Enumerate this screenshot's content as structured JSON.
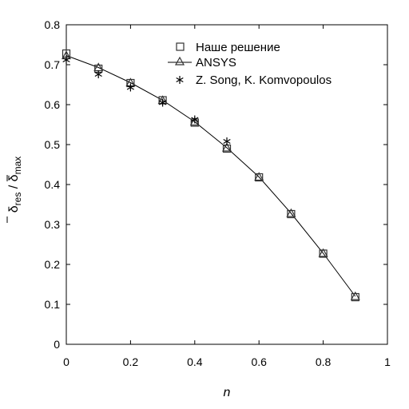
{
  "chart_data": {
    "type": "line",
    "xlabel": "n",
    "ylabel": {
      "numerator": "δ",
      "numerator_sub": "res",
      "separator": " / ",
      "denominator": "δ",
      "denominator_sub": "max"
    },
    "xlim": [
      0,
      1
    ],
    "ylim": [
      0,
      0.8
    ],
    "x_ticks": [
      "0",
      "0.2",
      "0.4",
      "0.6",
      "0.8",
      "1"
    ],
    "x_tick_values": [
      0,
      0.2,
      0.4,
      0.6,
      0.8,
      1.0
    ],
    "y_ticks": [
      "0",
      "0.1",
      "0.2",
      "0.3",
      "0.4",
      "0.5",
      "0.6",
      "0.7",
      "0.8"
    ],
    "y_tick_values": [
      0,
      0.1,
      0.2,
      0.3,
      0.4,
      0.5,
      0.6,
      0.7,
      0.8
    ],
    "grid": false,
    "legend_position": "top-right",
    "series": [
      {
        "name": "Наше решение",
        "marker": "square",
        "line": false,
        "x": [
          0,
          0.1,
          0.2,
          0.3,
          0.4,
          0.5,
          0.6,
          0.7,
          0.8,
          0.9
        ],
        "y": [
          0.728,
          0.69,
          0.654,
          0.611,
          0.555,
          0.49,
          0.418,
          0.326,
          0.227,
          0.118
        ]
      },
      {
        "name": "ANSYS",
        "marker": "triangle",
        "line": true,
        "x": [
          0,
          0.1,
          0.2,
          0.3,
          0.4,
          0.5,
          0.6,
          0.7,
          0.8,
          0.9
        ],
        "y": [
          0.723,
          0.693,
          0.655,
          0.611,
          0.557,
          0.492,
          0.419,
          0.328,
          0.228,
          0.12
        ]
      },
      {
        "name": "Z. Song, K. Komvopoulos",
        "marker": "asterisk",
        "line": false,
        "x": [
          0,
          0.1,
          0.2,
          0.3,
          0.4,
          0.5
        ],
        "y": [
          0.712,
          0.676,
          0.643,
          0.605,
          0.563,
          0.508
        ]
      }
    ],
    "colors": {
      "axis": "#000000",
      "series": "#000000",
      "marker": "#333333"
    }
  }
}
